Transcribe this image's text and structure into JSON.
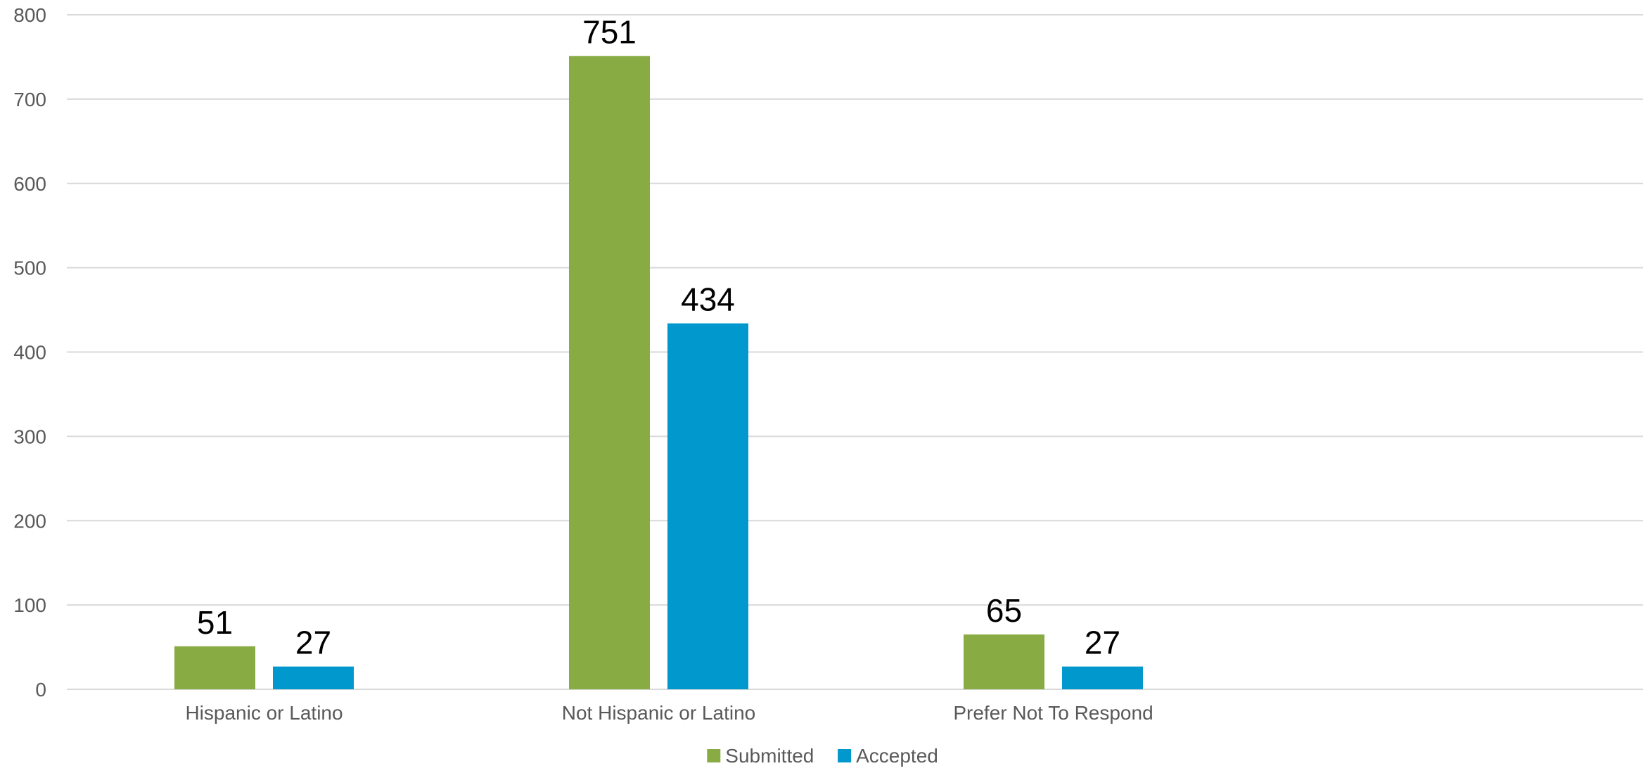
{
  "chart_data": {
    "type": "bar",
    "categories": [
      "Hispanic or Latino",
      "Not Hispanic or Latino",
      "Prefer Not To Respond"
    ],
    "series": [
      {
        "name": "Submitted",
        "color": "#88ac43",
        "values": [
          51,
          751,
          65
        ]
      },
      {
        "name": "Accepted",
        "color": "#0198ce",
        "values": [
          27,
          434,
          27
        ]
      }
    ],
    "ylim": [
      0,
      800
    ],
    "yticks": [
      0,
      100,
      200,
      300,
      400,
      500,
      600,
      700,
      800
    ],
    "grid": true,
    "legend_position": "bottom",
    "data_labels": true,
    "title": "",
    "xlabel": "",
    "ylabel": ""
  }
}
